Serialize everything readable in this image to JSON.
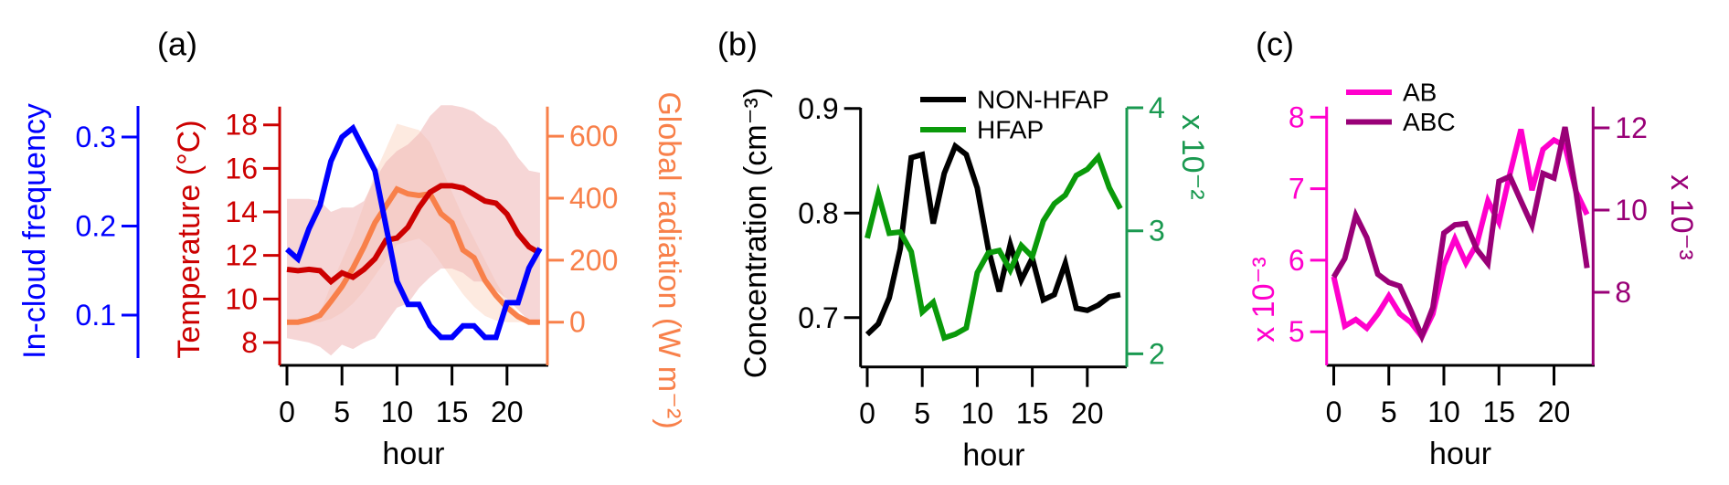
{
  "chart_data": [
    {
      "panel": "(a)",
      "type": "line",
      "x": [
        0,
        1,
        2,
        3,
        4,
        5,
        6,
        7,
        8,
        9,
        10,
        11,
        12,
        13,
        14,
        15,
        16,
        17,
        18,
        19,
        20,
        21,
        22,
        23
      ],
      "xlabel": "hour",
      "xticks": [
        "0",
        "5",
        "10",
        "15",
        "20"
      ],
      "axes": [
        {
          "id": "freq",
          "label": "In-cloud frequency",
          "ticks": [
            "0.1",
            "0.2",
            "0.3"
          ],
          "color": "#0000ff"
        },
        {
          "id": "temp",
          "label": "Temperature (°C)",
          "ticks": [
            "8",
            "10",
            "12",
            "14",
            "16",
            "18"
          ],
          "color": "#cc0000"
        },
        {
          "id": "rad",
          "label": "Global radiation (W m⁻²)",
          "ticks": [
            "0",
            "200",
            "400",
            "600"
          ],
          "color": "#f8804a"
        }
      ],
      "bands": [
        {
          "axis": "rad",
          "color": "#fbd9c6",
          "upper": [
            0,
            0,
            10,
            30,
            120,
            200,
            280,
            380,
            480,
            560,
            640,
            630,
            620,
            580,
            500,
            420,
            340,
            270,
            200,
            130,
            70,
            30,
            5,
            0
          ],
          "lower": [
            0,
            0,
            0,
            0,
            10,
            30,
            60,
            100,
            150,
            200,
            250,
            260,
            270,
            240,
            190,
            140,
            90,
            50,
            20,
            5,
            0,
            0,
            0,
            0
          ]
        },
        {
          "axis": "temp",
          "color": "#eeb4b4",
          "upper": [
            14.6,
            14.6,
            14.6,
            14.5,
            14.0,
            14.2,
            14.2,
            14.5,
            15.5,
            16.3,
            16.8,
            17.1,
            17.6,
            18.4,
            18.9,
            18.9,
            18.8,
            18.6,
            18.2,
            17.9,
            17.3,
            16.5,
            15.9,
            15.8
          ],
          "lower": [
            8.2,
            8.1,
            8.0,
            7.8,
            7.4,
            7.9,
            7.7,
            8.0,
            8.2,
            8.9,
            9.6,
            9.8,
            10.5,
            11.0,
            11.4,
            11.4,
            11.2,
            10.8,
            10.8,
            10.4,
            10.0,
            9.5,
            9.0,
            8.8
          ]
        }
      ],
      "series": [
        {
          "axis": "rad",
          "color": "#f8804a",
          "values": [
            0,
            0,
            8,
            22,
            67,
            115,
            174,
            243,
            321,
            375,
            429,
            414,
            409,
            414,
            350,
            321,
            233,
            208,
            135,
            86,
            47,
            18,
            0,
            0
          ]
        },
        {
          "axis": "temp",
          "color": "#cc0000",
          "values": [
            11.36,
            11.3,
            11.36,
            11.3,
            10.8,
            11.2,
            11.0,
            11.36,
            11.85,
            12.7,
            12.8,
            13.3,
            14.2,
            14.9,
            15.2,
            15.2,
            15.1,
            14.8,
            14.5,
            14.4,
            13.9,
            13.0,
            12.4,
            12.1
          ]
        },
        {
          "axis": "freq",
          "color": "#0000ff",
          "values": [
            0.174,
            0.163,
            0.197,
            0.223,
            0.273,
            0.3,
            0.31,
            0.286,
            0.262,
            0.2,
            0.138,
            0.112,
            0.112,
            0.088,
            0.075,
            0.075,
            0.088,
            0.088,
            0.075,
            0.075,
            0.114,
            0.114,
            0.153,
            0.175
          ]
        }
      ]
    },
    {
      "panel": "(b)",
      "type": "line",
      "x": [
        0,
        1,
        2,
        3,
        4,
        5,
        6,
        7,
        8,
        9,
        10,
        11,
        12,
        13,
        14,
        15,
        16,
        17,
        18,
        19,
        20,
        21,
        22,
        23
      ],
      "xlabel": "hour",
      "xticks": [
        "0",
        "5",
        "10",
        "15",
        "20"
      ],
      "axes": [
        {
          "id": "conc",
          "label": "Concentration (cm⁻³)",
          "ticks": [
            "0.7",
            "0.8",
            "0.9"
          ],
          "color": "#000000"
        },
        {
          "id": "hfap",
          "label": "x 10⁻²",
          "ticks": [
            "2",
            "3",
            "4"
          ],
          "color": "#1a9950"
        }
      ],
      "legend": {
        "placement": "top"
      },
      "series": [
        {
          "name": "NON-HFAP",
          "axis": "conc",
          "color": "#000000",
          "values": [
            0.684,
            0.694,
            0.719,
            0.766,
            0.853,
            0.856,
            0.79,
            0.838,
            0.864,
            0.856,
            0.824,
            0.766,
            0.725,
            0.77,
            0.736,
            0.757,
            0.717,
            0.722,
            0.752,
            0.709,
            0.707,
            0.712,
            0.72,
            0.722
          ]
        },
        {
          "name": "HFAP",
          "axis": "hfap",
          "color": "#0a9a0a",
          "values": [
            2.94,
            3.3,
            2.98,
            2.99,
            2.83,
            2.34,
            2.42,
            2.13,
            2.16,
            2.21,
            2.66,
            2.82,
            2.84,
            2.68,
            2.88,
            2.79,
            3.08,
            3.22,
            3.29,
            3.45,
            3.5,
            3.6,
            3.35,
            3.18
          ]
        }
      ]
    },
    {
      "panel": "(c)",
      "type": "line",
      "x": [
        0,
        1,
        2,
        3,
        4,
        5,
        6,
        7,
        8,
        9,
        10,
        11,
        12,
        13,
        14,
        15,
        16,
        17,
        18,
        19,
        20,
        21,
        22,
        23
      ],
      "xlabel": "hour",
      "xticks": [
        "0",
        "5",
        "10",
        "15",
        "20"
      ],
      "axes": [
        {
          "id": "ab",
          "label": "x 10⁻³",
          "ticks": [
            "5",
            "6",
            "7",
            "8"
          ],
          "color": "#ff00cc"
        },
        {
          "id": "abc",
          "label": "x 10⁻³",
          "ticks": [
            "8",
            "10",
            "12"
          ],
          "color": "#990077"
        }
      ],
      "legend": {
        "placement": "top-left"
      },
      "series": [
        {
          "name": "AB",
          "axis": "ab",
          "color": "#ff00cc",
          "values": [
            5.77,
            5.08,
            5.17,
            5.05,
            5.25,
            5.5,
            5.25,
            5.13,
            4.93,
            5.25,
            5.93,
            6.3,
            5.96,
            6.23,
            6.83,
            6.53,
            7.21,
            7.83,
            6.98,
            7.55,
            7.68,
            7.6,
            6.96,
            6.64
          ]
        },
        {
          "name": "ABC",
          "axis": "abc",
          "color": "#990077",
          "values": [
            8.37,
            8.82,
            9.87,
            9.33,
            8.44,
            8.24,
            8.15,
            7.56,
            6.93,
            7.63,
            9.44,
            9.64,
            9.67,
            9.04,
            8.7,
            10.7,
            10.82,
            10.22,
            9.63,
            10.89,
            10.78,
            12.02,
            10.44,
            8.59
          ]
        }
      ]
    }
  ]
}
